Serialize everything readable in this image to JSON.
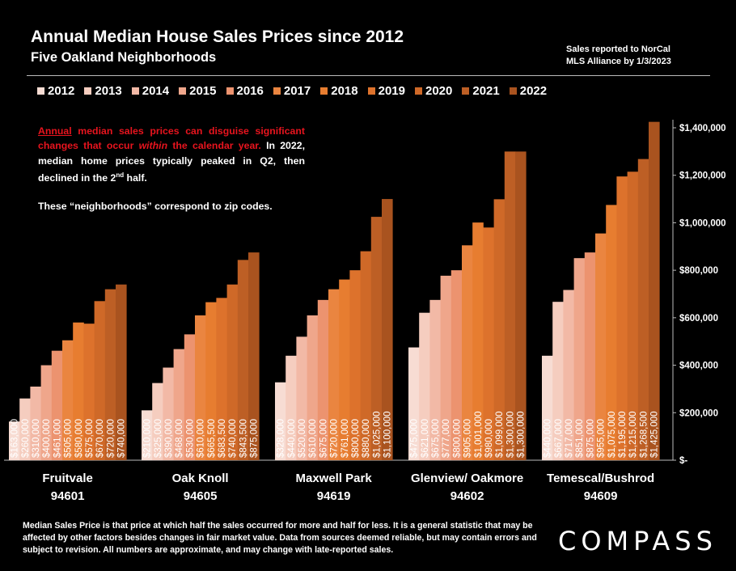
{
  "header": {
    "title": "Annual Median House Sales Prices since 2012",
    "subtitle": "Five Oakland Neighborhoods",
    "source_line1": "Sales reported to NorCal",
    "source_line2": "MLS Alliance by 1/3/2023"
  },
  "annotation": {
    "w1": "Annual",
    "t1": " median sales prices can disguise significant changes that occur ",
    "t2": "within",
    "t3": " the calendar year.",
    "t4": " In 2022, median home prices typically peaked in Q2, then declined in the 2",
    "t5": "nd",
    "t6": " half.",
    "p2": "These “neighborhoods” correspond to zip codes."
  },
  "footnote": "Median Sales Price is that price at which half the sales occurred for more and half for less. It is a general statistic that may be affected by other factors besides changes in fair market value. Data from sources deemed reliable, but may contain errors and subject to revision.  All numbers are approximate, and may change with late-reported sales.",
  "logo": "COMPASS",
  "colors": {
    "years": [
      "#f7dcd3",
      "#f5cdbf",
      "#f2b9a6",
      "#efa68b",
      "#ec936f",
      "#ea8540",
      "#e77d30",
      "#dd722c",
      "#cf6928",
      "#bd5f25",
      "#a9531f"
    ]
  },
  "chart_data": {
    "type": "bar",
    "title": "Annual Median House Sales Prices since 2012",
    "subtitle": "Five Oakland Neighborhoods",
    "categories": [
      "Fruitvale\n94601",
      "Oak Knoll\n94605",
      "Maxwell Park\n94619",
      "Glenview/ Oakmore\n94602",
      "Temescal/Bushrod\n94609"
    ],
    "category_names": [
      "Fruitvale",
      "Oak Knoll",
      "Maxwell Park",
      "Glenview/ Oakmore",
      "Temescal/Bushrod"
    ],
    "category_zips": [
      "94601",
      "94605",
      "94619",
      "94602",
      "94609"
    ],
    "legend_position": "top",
    "years": [
      "2012",
      "2013",
      "2014",
      "2015",
      "2016",
      "2017",
      "2018",
      "2019",
      "2020",
      "2021",
      "2022"
    ],
    "series": [
      {
        "name": "2012",
        "values": [
          163000,
          210000,
          328000,
          475000,
          440000
        ]
      },
      {
        "name": "2013",
        "values": [
          260000,
          325000,
          440000,
          621000,
          667000
        ]
      },
      {
        "name": "2014",
        "values": [
          310000,
          390000,
          520000,
          675000,
          717000
        ]
      },
      {
        "name": "2015",
        "values": [
          400000,
          468000,
          610000,
          777000,
          851000
        ]
      },
      {
        "name": "2016",
        "values": [
          461000,
          530000,
          675000,
          800000,
          875000
        ]
      },
      {
        "name": "2017",
        "values": [
          505000,
          610000,
          720000,
          905000,
          955000
        ]
      },
      {
        "name": "2018",
        "values": [
          580000,
          665500,
          761000,
          1001000,
          1075000
        ]
      },
      {
        "name": "2019",
        "values": [
          575000,
          683500,
          800000,
          980000,
          1195000
        ]
      },
      {
        "name": "2020",
        "values": [
          670000,
          740000,
          880000,
          1099000,
          1215000
        ]
      },
      {
        "name": "2021",
        "values": [
          720000,
          843500,
          1025000,
          1300000,
          1268500
        ]
      },
      {
        "name": "2022",
        "values": [
          740000,
          875000,
          1100000,
          1300000,
          1425000
        ]
      }
    ],
    "ylim": [
      0,
      1400000
    ],
    "y_ticks": [
      0,
      200000,
      400000,
      600000,
      800000,
      1000000,
      1200000,
      1400000
    ],
    "y_tick_labels": [
      "$-",
      "$200,000",
      "$400,000",
      "$600,000",
      "$800,000",
      "$1,000,000",
      "$1,200,000",
      "$1,400,000"
    ],
    "y_axis_side": "right",
    "grid": false,
    "data_labels": [
      [
        "$163,000",
        "$260,000",
        "$310,000",
        "$400,000",
        "$461,000",
        "$505,000",
        "$580,000",
        "$575,000",
        "$670,000",
        "$720,000",
        "$740,000"
      ],
      [
        "$210,000",
        "$325,000",
        "$390,000",
        "$468,000",
        "$530,000",
        "$610,000",
        "$665,500",
        "$683,500",
        "$740,000",
        "$843,500",
        "$875,000"
      ],
      [
        "$328,000",
        "$440,000",
        "$520,000",
        "$610,000",
        "$675,000",
        "$720,000",
        "$761,000",
        "$800,000",
        "$880,000",
        "$1,025,000",
        "$1,100,000"
      ],
      [
        "$475,000",
        "$621,000",
        "$675,000",
        "$777,000",
        "$800,000",
        "$905,000",
        "$1,001,000",
        "$980,000",
        "$1,099,000",
        "$1,300,000",
        "$1,300,000"
      ],
      [
        "$440,000",
        "$667,000",
        "$717,000",
        "$851,000",
        "$875,000",
        "$955,000",
        "$1,075,000",
        "$1,195,000",
        "$1,215,000",
        "$1,268,500",
        "$1,425,000"
      ]
    ]
  }
}
